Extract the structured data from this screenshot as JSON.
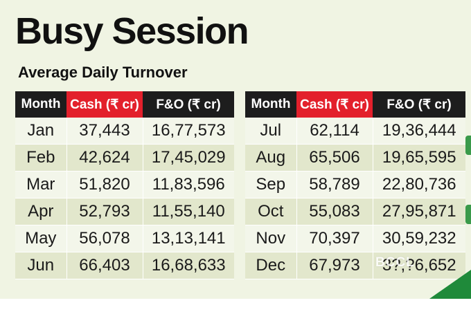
{
  "header": {
    "title": "Busy Session",
    "subtitle": "Average Daily Turnover"
  },
  "table_headers": {
    "month": "Month",
    "cash": "Cash (₹ cr)",
    "fo": "F&O (₹ cr)"
  },
  "watermark": "BCCL",
  "colors": {
    "accent_red": "#e3202b",
    "header_dark": "#1d1d1d",
    "row_light": "#f3f6ea",
    "row_dark": "#e2e7cc",
    "corner_green": "#1f8a3a"
  },
  "chart_data": {
    "type": "table",
    "title": "Busy Session",
    "subtitle": "Average Daily Turnover",
    "columns": [
      "Month",
      "Cash (₹ cr)",
      "F&O (₹ cr)"
    ],
    "left_rows": [
      {
        "month": "Jan",
        "cash": "37,443",
        "fo": "16,77,573"
      },
      {
        "month": "Feb",
        "cash": "42,624",
        "fo": "17,45,029"
      },
      {
        "month": "Mar",
        "cash": "51,820",
        "fo": "11,83,596"
      },
      {
        "month": "Apr",
        "cash": "52,793",
        "fo": "11,55,140"
      },
      {
        "month": "May",
        "cash": "56,078",
        "fo": "13,13,141"
      },
      {
        "month": "Jun",
        "cash": "66,403",
        "fo": "16,68,633"
      }
    ],
    "right_rows": [
      {
        "month": "Jul",
        "cash": "62,114",
        "fo": "19,36,444"
      },
      {
        "month": "Aug",
        "cash": "65,506",
        "fo": "19,65,595"
      },
      {
        "month": "Sep",
        "cash": "58,789",
        "fo": "22,80,736"
      },
      {
        "month": "Oct",
        "cash": "55,083",
        "fo": "27,95,871"
      },
      {
        "month": "Nov",
        "cash": "70,397",
        "fo": "30,59,232"
      },
      {
        "month": "Dec",
        "cash": "67,973",
        "fo": "3?,?6,652"
      }
    ]
  }
}
